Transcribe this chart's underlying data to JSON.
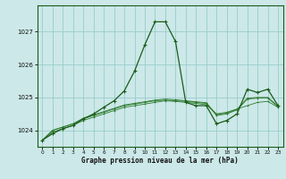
{
  "xlabel": "Graphe pression niveau de la mer (hPa)",
  "background_color": "#cce8e8",
  "grid_color": "#99cccc",
  "line_color_dark": "#1a5c1a",
  "line_color_mid": "#2d7a2d",
  "x": [
    0,
    1,
    2,
    3,
    4,
    5,
    6,
    7,
    8,
    9,
    10,
    11,
    12,
    13,
    14,
    15,
    16,
    17,
    18,
    19,
    20,
    21,
    22,
    23
  ],
  "y_main": [
    1023.7,
    1023.9,
    1024.05,
    1024.15,
    1024.35,
    1024.5,
    1024.7,
    1024.9,
    1025.2,
    1025.8,
    1026.6,
    1027.3,
    1027.3,
    1026.7,
    1024.85,
    1024.75,
    1024.75,
    1024.2,
    1024.3,
    1024.5,
    1025.25,
    1025.15,
    1025.25,
    1024.75
  ],
  "y_line2": [
    1023.7,
    1023.95,
    1024.05,
    1024.15,
    1024.3,
    1024.4,
    1024.5,
    1024.6,
    1024.7,
    1024.75,
    1024.8,
    1024.85,
    1024.9,
    1024.88,
    1024.85,
    1024.82,
    1024.78,
    1024.5,
    1024.55,
    1024.65,
    1024.75,
    1024.85,
    1024.88,
    1024.7
  ],
  "y_line3": [
    1023.7,
    1024.0,
    1024.1,
    1024.2,
    1024.35,
    1024.45,
    1024.55,
    1024.65,
    1024.75,
    1024.8,
    1024.85,
    1024.9,
    1024.92,
    1024.9,
    1024.88,
    1024.85,
    1024.82,
    1024.45,
    1024.5,
    1024.62,
    1024.95,
    1024.98,
    1024.98,
    1024.72
  ],
  "y_line4": [
    1023.7,
    1024.0,
    1024.1,
    1024.2,
    1024.37,
    1024.47,
    1024.57,
    1024.67,
    1024.77,
    1024.82,
    1024.87,
    1024.92,
    1024.95,
    1024.93,
    1024.9,
    1024.87,
    1024.84,
    1024.48,
    1024.52,
    1024.64,
    1024.98,
    1025.0,
    1025.0,
    1024.74
  ],
  "ylim": [
    1023.5,
    1027.8
  ],
  "yticks": [
    1024,
    1025,
    1026,
    1027
  ],
  "xticks": [
    0,
    1,
    2,
    3,
    4,
    5,
    6,
    7,
    8,
    9,
    10,
    11,
    12,
    13,
    14,
    15,
    16,
    17,
    18,
    19,
    20,
    21,
    22,
    23
  ]
}
